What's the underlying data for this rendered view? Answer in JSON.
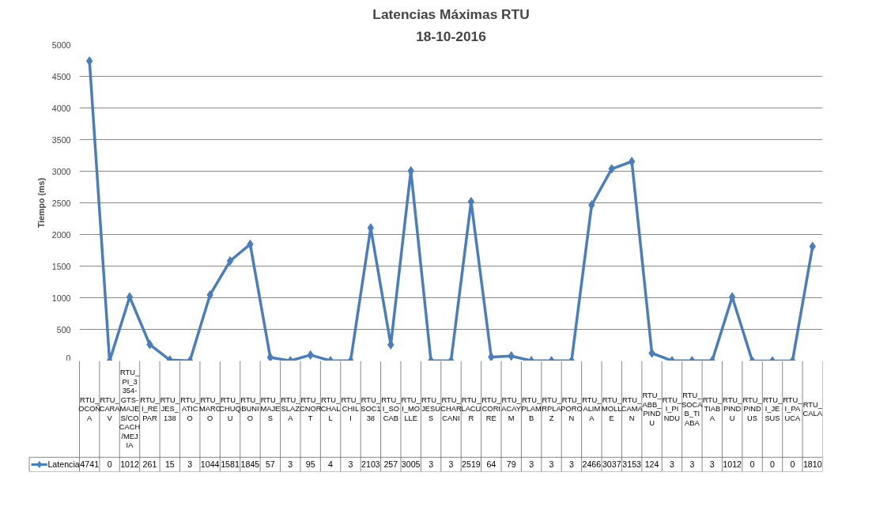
{
  "chart_data": {
    "type": "line",
    "title": "Latencias Máximas RTU",
    "subtitle": "18-10-2016",
    "ylabel": "Tiempo (ms)",
    "categories": [
      "RTU_OCOÑA",
      "RTU_CARAV",
      "RTU_PI_3354-GTS-MAJES/COCACH/MEJIA",
      "RTU_I_REPAR",
      "RTU_JES_138",
      "RTU_ATICO",
      "RTU_MARCO",
      "RTU_CHUQU",
      "RTU_BUNIO",
      "RTU_MAJES",
      "RTU_SLAZA",
      "RTU_CNORT",
      "RTU_CHALL",
      "RTU_CHILI",
      "RTU_SOC138",
      "RTU_I_SOCAB",
      "RTU_I_MOLLE",
      "RTU_JESUS",
      "RTU_CHARCANI",
      "RTU_LACUR",
      "RTU_CORIRE",
      "RTU_ACAYM",
      "RTU_PLAMB",
      "RTU_RPLAZ",
      "RTU_PORON",
      "RTU_ALIMA",
      "RTU_MOLLE",
      "RTU_CAMAN",
      "RTU_ABB_PINDU",
      "RTU_I_PINDU",
      "RTU_SOCAB_TIABA",
      "RTU_TIABA",
      "RTU_PINDU",
      "RTU_PINDUS",
      "RTU_I_JESUS",
      "RTU_I_PAUCA",
      "RTU_CALA"
    ],
    "series": [
      {
        "name": "Latencia",
        "color": "#4a7ebb",
        "values": [
          4741,
          0,
          1012,
          261,
          15,
          3,
          1044,
          1581,
          1845,
          57,
          3,
          95,
          4,
          3,
          2103,
          257,
          3005,
          3,
          3,
          2519,
          64,
          79,
          3,
          3,
          3,
          2466,
          3037,
          3153,
          124,
          3,
          3,
          3,
          1012,
          0,
          0,
          0,
          1810
        ]
      }
    ],
    "ylim": [
      0,
      5000
    ],
    "yticks": [
      0,
      500,
      1000,
      1500,
      2000,
      2500,
      3000,
      3500,
      4000,
      4500,
      5000
    ],
    "grid": "y",
    "legend": "bottom",
    "marker": "diamond",
    "line_style": "solid",
    "data_labels": true
  }
}
